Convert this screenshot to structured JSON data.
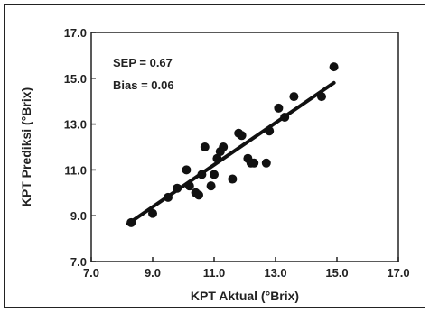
{
  "chart_data": {
    "type": "scatter",
    "xlabel": "KPT Aktual (°Brix)",
    "ylabel": "KPT Prediksi (°Brix)",
    "xlim": [
      7.0,
      17.0
    ],
    "ylim": [
      7.0,
      17.0
    ],
    "x_ticks": [
      "7.0",
      "9.0",
      "11.0",
      "13.0",
      "15.0",
      "17.0"
    ],
    "y_ticks": [
      "7.0",
      "9.0",
      "11.0",
      "13.0",
      "15.0",
      "17.0"
    ],
    "x_tick_values": [
      7,
      9,
      11,
      13,
      15,
      17
    ],
    "y_tick_values": [
      7,
      9,
      11,
      13,
      15,
      17
    ],
    "annotations": [
      "SEP = 0.67",
      "Bias = 0.06"
    ],
    "grid": false,
    "points": [
      {
        "x": 8.3,
        "y": 8.7
      },
      {
        "x": 9.0,
        "y": 9.1
      },
      {
        "x": 9.5,
        "y": 9.8
      },
      {
        "x": 9.8,
        "y": 10.2
      },
      {
        "x": 10.1,
        "y": 11.0
      },
      {
        "x": 10.2,
        "y": 10.3
      },
      {
        "x": 10.4,
        "y": 10.0
      },
      {
        "x": 10.5,
        "y": 9.9
      },
      {
        "x": 10.6,
        "y": 10.8
      },
      {
        "x": 10.7,
        "y": 12.0
      },
      {
        "x": 10.9,
        "y": 10.3
      },
      {
        "x": 11.0,
        "y": 10.8
      },
      {
        "x": 11.1,
        "y": 11.5
      },
      {
        "x": 11.2,
        "y": 11.8
      },
      {
        "x": 11.3,
        "y": 12.0
      },
      {
        "x": 11.6,
        "y": 10.6
      },
      {
        "x": 11.8,
        "y": 12.6
      },
      {
        "x": 11.9,
        "y": 12.5
      },
      {
        "x": 12.1,
        "y": 11.5
      },
      {
        "x": 12.2,
        "y": 11.3
      },
      {
        "x": 12.3,
        "y": 11.3
      },
      {
        "x": 12.7,
        "y": 11.3
      },
      {
        "x": 12.8,
        "y": 12.7
      },
      {
        "x": 13.1,
        "y": 13.7
      },
      {
        "x": 13.3,
        "y": 13.3
      },
      {
        "x": 13.6,
        "y": 14.2
      },
      {
        "x": 14.5,
        "y": 14.2
      },
      {
        "x": 14.9,
        "y": 15.5
      }
    ],
    "fit_line": {
      "x": [
        8.2,
        14.9
      ],
      "y": [
        8.65,
        14.8
      ]
    }
  }
}
